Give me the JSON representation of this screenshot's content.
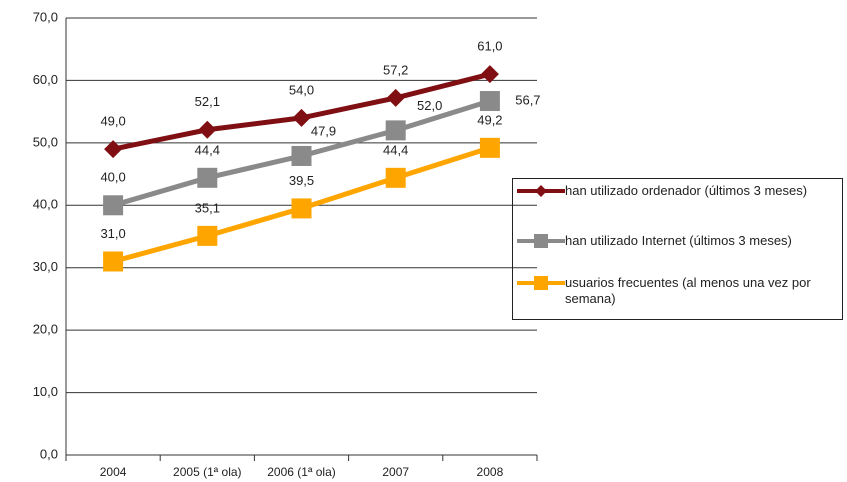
{
  "chart_data": {
    "type": "line",
    "categories": [
      "2004",
      "2005 (1ª ola)",
      "2006 (1ª ola)",
      "2007",
      "2008"
    ],
    "series": [
      {
        "name": "han utilizado ordenador (últimos 3 meses)",
        "color": "#7f0f12",
        "marker": "diamond",
        "values": [
          49.0,
          52.1,
          54.0,
          57.2,
          61.0
        ],
        "value_labels": [
          "49,0",
          "52,1",
          "54,0",
          "57,2",
          "61,0"
        ]
      },
      {
        "name": "han utilizado Internet (últimos 3 meses)",
        "color": "#8a8a8a",
        "marker": "square",
        "values": [
          40.0,
          44.4,
          47.9,
          52.0,
          56.7
        ],
        "value_labels": [
          "40,0",
          "44,4",
          "47,9",
          "52,0",
          "56,7"
        ]
      },
      {
        "name": "usuarios frecuentes (al menos una vez por semana)",
        "color": "#ffa500",
        "marker": "square",
        "values": [
          31.0,
          35.1,
          39.5,
          44.4,
          49.2
        ],
        "value_labels": [
          "31,0",
          "35,1",
          "39,5",
          "44,4",
          "49,2"
        ]
      }
    ],
    "ylim": [
      0,
      70
    ],
    "yticks": [
      {
        "value": 0,
        "label": "0,0"
      },
      {
        "value": 10,
        "label": "10,0"
      },
      {
        "value": 20,
        "label": "20,0"
      },
      {
        "value": 30,
        "label": "30,0"
      },
      {
        "value": 40,
        "label": "40,0"
      },
      {
        "value": 50,
        "label": "50,0"
      },
      {
        "value": 60,
        "label": "60,0"
      },
      {
        "value": 70,
        "label": "70,0"
      }
    ],
    "grid": true,
    "legend": "right"
  }
}
